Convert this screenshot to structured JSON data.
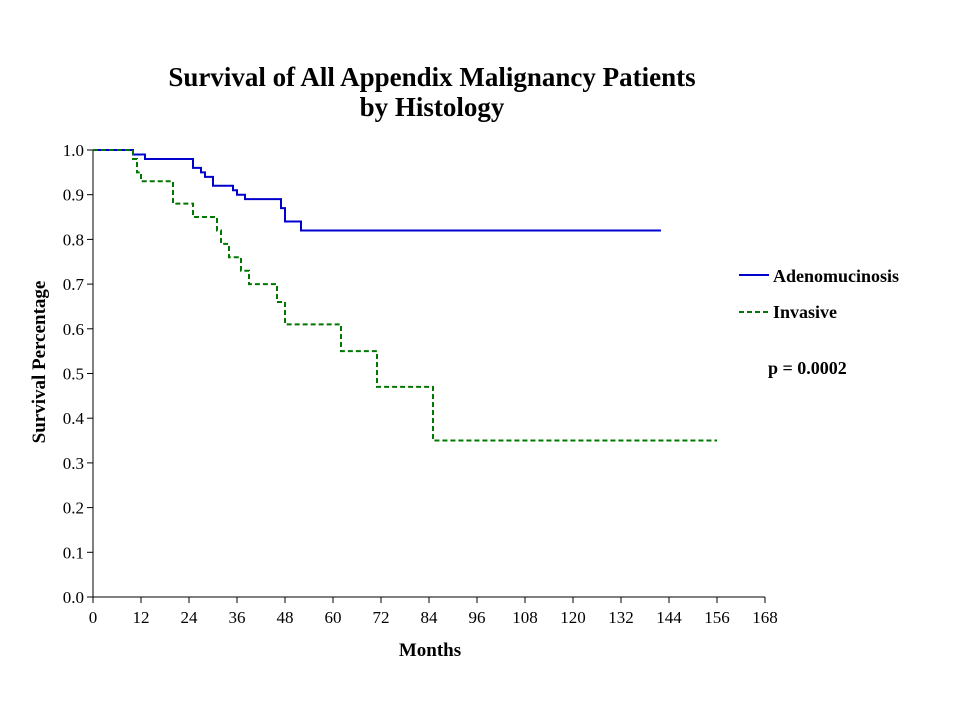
{
  "chart_data": {
    "type": "line",
    "title": "Survival of All Appendix Malignancy Patients",
    "subtitle": "by Histology",
    "xlabel": "Months",
    "ylabel": "Survival Percentage",
    "xlim": [
      0,
      168
    ],
    "ylim": [
      0.0,
      1.0
    ],
    "xticks": [
      "0",
      "12",
      "24",
      "36",
      "48",
      "60",
      "72",
      "84",
      "96",
      "108",
      "120",
      "132",
      "144",
      "156",
      "168"
    ],
    "yticks": [
      "0.0",
      "0.1",
      "0.2",
      "0.3",
      "0.4",
      "0.5",
      "0.6",
      "0.7",
      "0.8",
      "0.9",
      "1.0"
    ],
    "grid": false,
    "legend_position": "right",
    "annotation": "p = 0.0002",
    "series": [
      {
        "name": "Adenomucinosis",
        "color": "#0000cc",
        "line_style": "solid",
        "step": true,
        "points": [
          [
            0,
            1.0
          ],
          [
            10,
            0.99
          ],
          [
            13,
            0.98
          ],
          [
            25,
            0.96
          ],
          [
            27,
            0.95
          ],
          [
            28,
            0.94
          ],
          [
            30,
            0.92
          ],
          [
            35,
            0.91
          ],
          [
            36,
            0.9
          ],
          [
            38,
            0.89
          ],
          [
            47,
            0.87
          ],
          [
            48,
            0.84
          ],
          [
            52,
            0.82
          ],
          [
            142,
            0.82
          ]
        ]
      },
      {
        "name": "Invasive",
        "color": "#007700",
        "line_style": "dashed",
        "step": true,
        "points": [
          [
            0,
            1.0
          ],
          [
            10,
            0.98
          ],
          [
            11,
            0.95
          ],
          [
            12,
            0.93
          ],
          [
            20,
            0.88
          ],
          [
            25,
            0.85
          ],
          [
            31,
            0.82
          ],
          [
            32,
            0.79
          ],
          [
            34,
            0.76
          ],
          [
            37,
            0.73
          ],
          [
            39,
            0.7
          ],
          [
            46,
            0.66
          ],
          [
            48,
            0.61
          ],
          [
            62,
            0.55
          ],
          [
            71,
            0.47
          ],
          [
            85,
            0.35
          ],
          [
            156,
            0.35
          ]
        ]
      }
    ]
  }
}
